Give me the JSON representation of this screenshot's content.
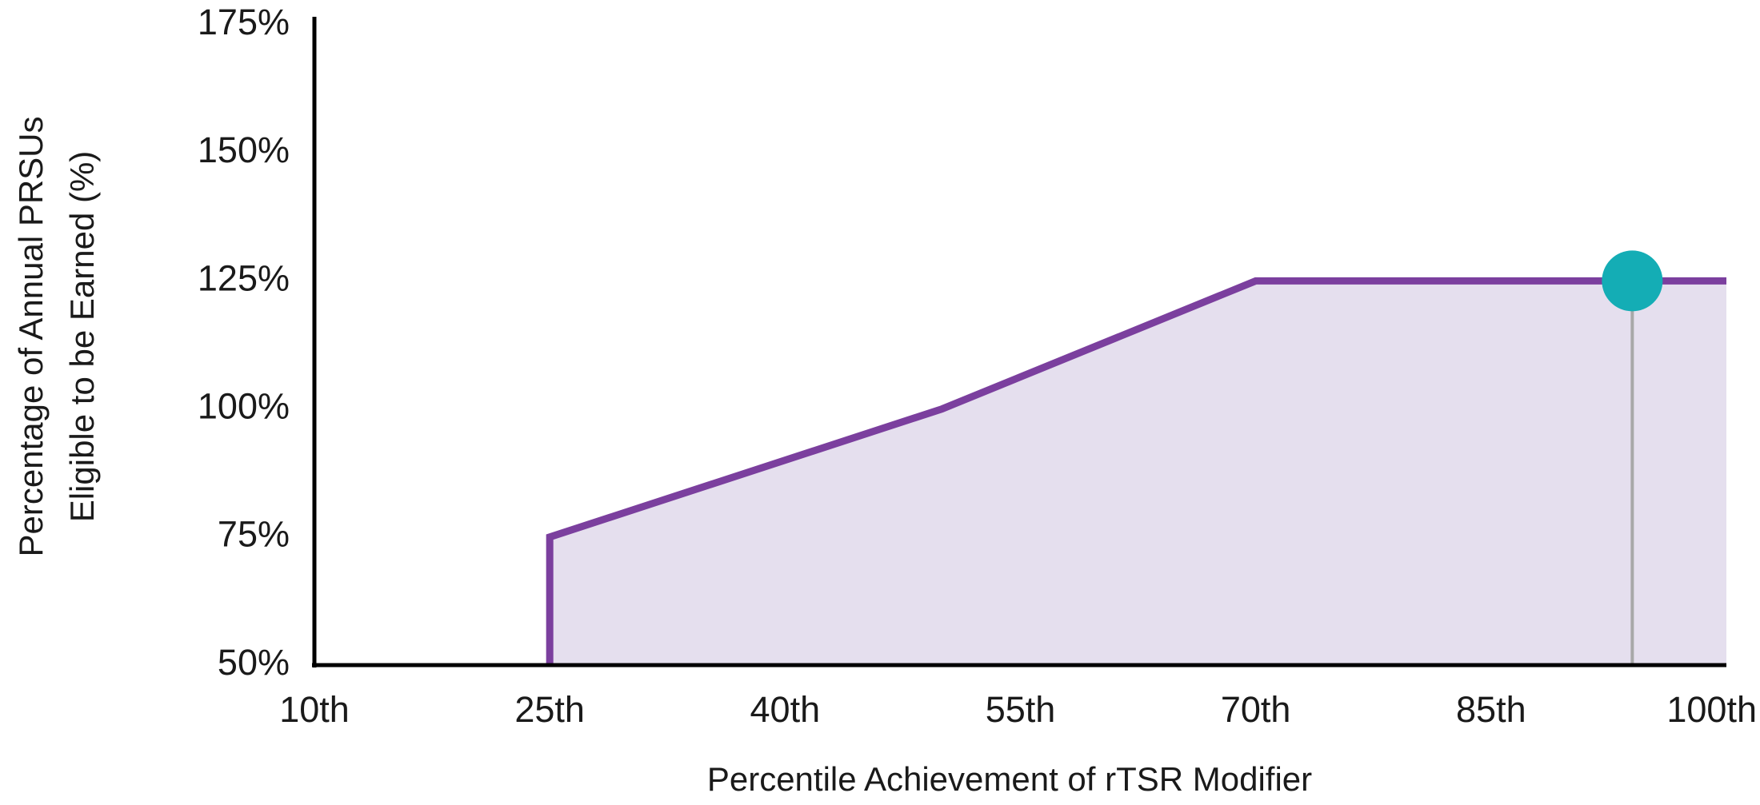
{
  "chart_data": {
    "type": "line",
    "xlabel": "Percentile Achievement of rTSR Modifier",
    "ylabel": [
      "Percentage of Annual PRSUs",
      "Eligible to be Earned (%)"
    ],
    "xlim": [
      10,
      100
    ],
    "xticks": [
      {
        "value": 10,
        "label": "10th"
      },
      {
        "value": 25,
        "label": "25th"
      },
      {
        "value": 40,
        "label": "40th"
      },
      {
        "value": 55,
        "label": "55th"
      },
      {
        "value": 70,
        "label": "70th"
      },
      {
        "value": 85,
        "label": "85th"
      },
      {
        "value": 100,
        "label": "100th"
      }
    ],
    "ylim": [
      50,
      175
    ],
    "yticks": [
      {
        "value": 50,
        "label": "50%"
      },
      {
        "value": 75,
        "label": "75%"
      },
      {
        "value": 100,
        "label": "100%"
      },
      {
        "value": 125,
        "label": "125%"
      },
      {
        "value": 150,
        "label": "150%"
      },
      {
        "value": 175,
        "label": "175%"
      }
    ],
    "grid": false,
    "series": [
      {
        "x": [
          25,
          25,
          50,
          70,
          100
        ],
        "values": [
          50,
          75,
          100,
          125,
          125
        ],
        "color": "#7b3f9e",
        "fill": "#e5dfee"
      }
    ],
    "marker": {
      "x": 94,
      "value": 125,
      "color": "#14adb5",
      "stem_color": "#a8a8a8"
    }
  }
}
